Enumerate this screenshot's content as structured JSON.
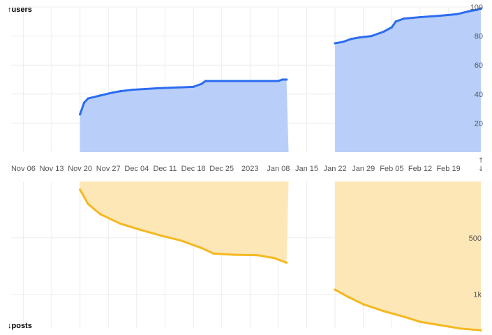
{
  "chart_data": [
    {
      "type": "area",
      "ylabel": "↑users",
      "yticks": [
        20,
        40,
        60,
        80,
        100
      ],
      "ylim": [
        0,
        100
      ],
      "grid": true,
      "colors": {
        "line": "#2b6cf0",
        "fill": "#b9cffa"
      },
      "x_ticks": [
        "Nov 06",
        "Nov 13",
        "Nov 20",
        "Nov 27",
        "Dec 04",
        "Dec 11",
        "Dec 18",
        "Dec 25",
        "2023",
        "Jan 08",
        "Jan 15",
        "Jan 22",
        "Jan 29",
        "Feb 05",
        "Feb 12",
        "Feb 19"
      ],
      "segments": [
        [
          {
            "x": "2022-11-20",
            "y": 26
          },
          {
            "x": "2022-11-21",
            "y": 34
          },
          {
            "x": "2022-11-22",
            "y": 37
          },
          {
            "x": "2022-11-25",
            "y": 39
          },
          {
            "x": "2022-11-28",
            "y": 41
          },
          {
            "x": "2022-11-30",
            "y": 42
          },
          {
            "x": "2022-12-03",
            "y": 43
          },
          {
            "x": "2022-12-09",
            "y": 44
          },
          {
            "x": "2022-12-18",
            "y": 45
          },
          {
            "x": "2022-12-20",
            "y": 47
          },
          {
            "x": "2022-12-21",
            "y": 49
          },
          {
            "x": "2023-01-08",
            "y": 49
          },
          {
            "x": "2023-01-09",
            "y": 50
          },
          {
            "x": "2023-01-10",
            "y": 50
          }
        ],
        [
          {
            "x": "2023-01-22",
            "y": 75
          },
          {
            "x": "2023-01-24",
            "y": 76
          },
          {
            "x": "2023-01-26",
            "y": 78
          },
          {
            "x": "2023-01-28",
            "y": 79
          },
          {
            "x": "2023-01-31",
            "y": 80
          },
          {
            "x": "2023-02-03",
            "y": 83
          },
          {
            "x": "2023-02-05",
            "y": 86
          },
          {
            "x": "2023-02-06",
            "y": 90
          },
          {
            "x": "2023-02-08",
            "y": 92
          },
          {
            "x": "2023-02-12",
            "y": 93
          },
          {
            "x": "2023-02-17",
            "y": 94
          },
          {
            "x": "2023-02-21",
            "y": 95
          },
          {
            "x": "2023-02-24",
            "y": 97
          },
          {
            "x": "2023-02-26",
            "y": 98
          },
          {
            "x": "2023-02-27",
            "y": 99
          }
        ]
      ]
    },
    {
      "type": "area",
      "ylabel": "↓posts",
      "yticks": [
        500,
        1000
      ],
      "ytick_labels": [
        "500",
        "1k"
      ],
      "ylim": [
        0,
        1300
      ],
      "inverted": true,
      "grid": true,
      "colors": {
        "line": "#f5b820",
        "fill": "#fde7b6"
      },
      "segments": [
        [
          {
            "x": "2022-11-20",
            "y": 73
          },
          {
            "x": "2022-11-22",
            "y": 200
          },
          {
            "x": "2022-11-25",
            "y": 290
          },
          {
            "x": "2022-11-30",
            "y": 375
          },
          {
            "x": "2022-12-05",
            "y": 430
          },
          {
            "x": "2022-12-10",
            "y": 480
          },
          {
            "x": "2022-12-15",
            "y": 525
          },
          {
            "x": "2022-12-20",
            "y": 590
          },
          {
            "x": "2022-12-23",
            "y": 640
          },
          {
            "x": "2022-12-28",
            "y": 650
          },
          {
            "x": "2023-01-03",
            "y": 655
          },
          {
            "x": "2023-01-07",
            "y": 680
          },
          {
            "x": "2023-01-10",
            "y": 720
          }
        ],
        [
          {
            "x": "2023-01-22",
            "y": 960
          },
          {
            "x": "2023-01-25",
            "y": 1020
          },
          {
            "x": "2023-01-29",
            "y": 1090
          },
          {
            "x": "2023-02-03",
            "y": 1150
          },
          {
            "x": "2023-02-08",
            "y": 1200
          },
          {
            "x": "2023-02-12",
            "y": 1245
          },
          {
            "x": "2023-02-17",
            "y": 1275
          },
          {
            "x": "2023-02-22",
            "y": 1305
          },
          {
            "x": "2023-02-27",
            "y": 1320
          }
        ]
      ]
    }
  ]
}
